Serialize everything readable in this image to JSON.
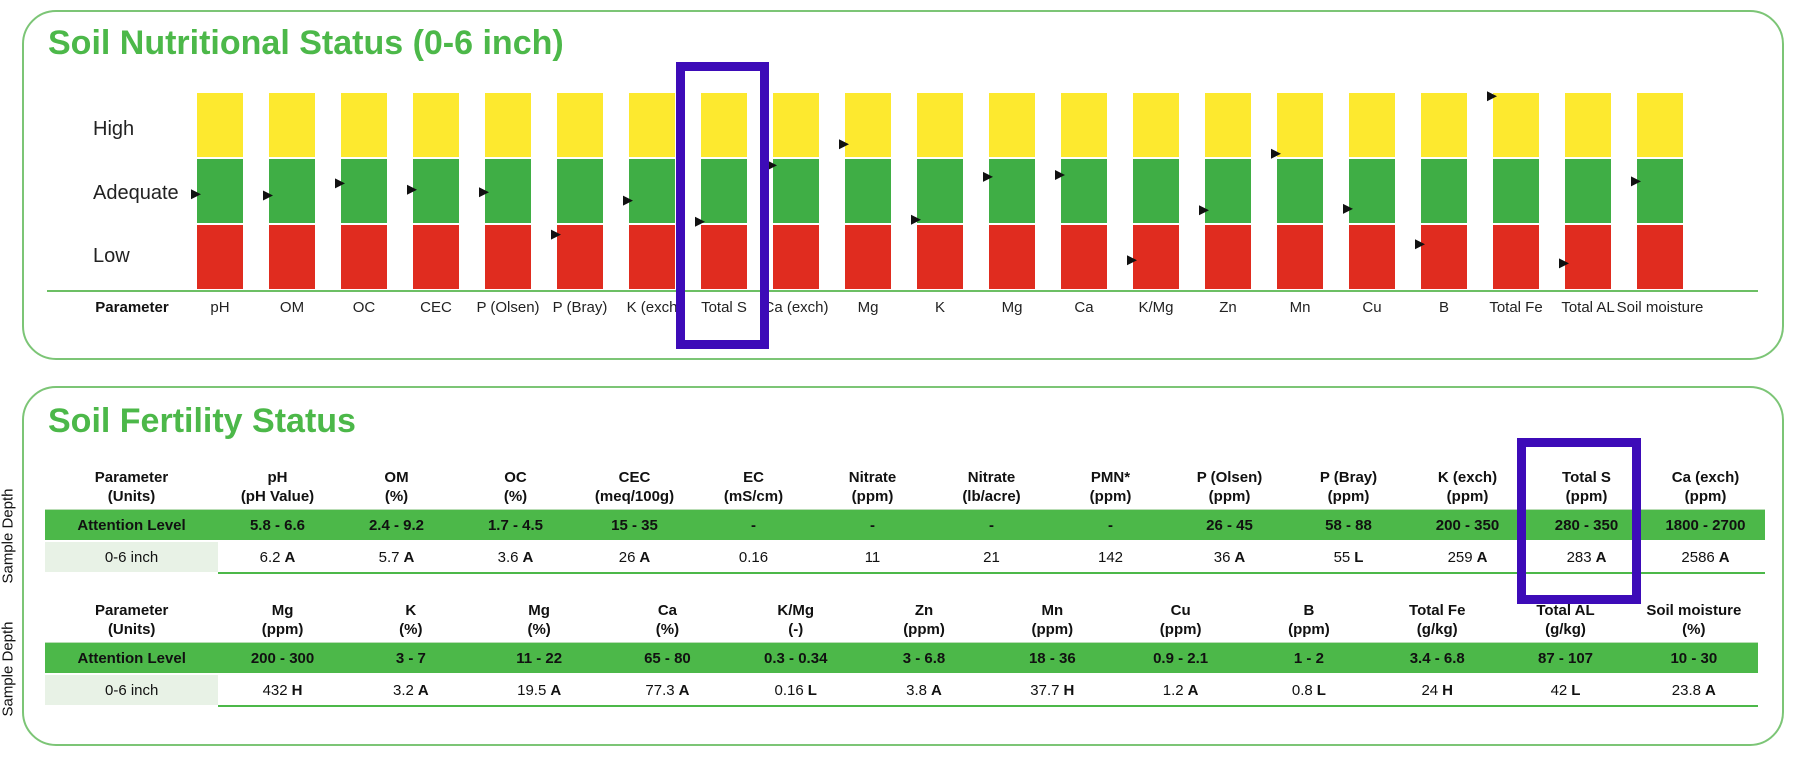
{
  "nutritional": {
    "title": "Soil Nutritional Status (0-6 inch)",
    "row_labels": [
      "High",
      "Adequate",
      "Low"
    ],
    "param_header": "Parameter",
    "colors": {
      "high": "#fde92f",
      "adequate": "#3fae45",
      "low": "#e02c1f",
      "axis": "#6cbf64",
      "highlight": "#3d0bb8"
    },
    "parameters": [
      "pH",
      "OM",
      "OC",
      "CEC",
      "P (Olsen)",
      "P (Bray)",
      "K (exch",
      "Total S",
      "Ca (exch)",
      "Mg",
      "K",
      "Mg",
      "Ca",
      "K/Mg",
      "Zn",
      "Mn",
      "Cu",
      "B",
      "Total Fe",
      "Total AL",
      "Soil moisture"
    ],
    "marker_levels": [
      1.45,
      1.43,
      1.62,
      1.52,
      1.48,
      0.85,
      1.35,
      1.02,
      1.9,
      2.2,
      1.05,
      1.72,
      1.75,
      0.45,
      1.2,
      2.05,
      1.22,
      0.7,
      2.95,
      0.4,
      1.65
    ],
    "highlighted_index": 7
  },
  "fertility": {
    "title": "Soil Fertility Status",
    "sample_depth_label": "Sample Depth",
    "attention_label": "Attention Level",
    "table1": {
      "param_label": "Parameter",
      "units_label": "(Units)",
      "columns": [
        {
          "name": "pH",
          "unit": "(pH Value)",
          "range": "5.8 - 6.6",
          "value": "6.2",
          "level": "A"
        },
        {
          "name": "OM",
          "unit": "(%)",
          "range": "2.4 - 9.2",
          "value": "5.7",
          "level": "A"
        },
        {
          "name": "OC",
          "unit": "(%)",
          "range": "1.7 - 4.5",
          "value": "3.6",
          "level": "A"
        },
        {
          "name": "CEC",
          "unit": "(meq/100g)",
          "range": "15 - 35",
          "value": "26",
          "level": "A"
        },
        {
          "name": "EC",
          "unit": "(mS/cm)",
          "range": "-",
          "value": "0.16",
          "level": ""
        },
        {
          "name": "Nitrate",
          "unit": "(ppm)",
          "range": "-",
          "value": "11",
          "level": ""
        },
        {
          "name": "Nitrate",
          "unit": "(lb/acre)",
          "range": "-",
          "value": "21",
          "level": ""
        },
        {
          "name": "PMN*",
          "unit": "(ppm)",
          "range": "-",
          "value": "142",
          "level": ""
        },
        {
          "name": "P (Olsen)",
          "unit": "(ppm)",
          "range": "26 - 45",
          "value": "36",
          "level": "A"
        },
        {
          "name": "P (Bray)",
          "unit": "(ppm)",
          "range": "58 - 88",
          "value": "55",
          "level": "L"
        },
        {
          "name": "K (exch)",
          "unit": "(ppm)",
          "range": "200 - 350",
          "value": "259",
          "level": "A"
        },
        {
          "name": "Total S",
          "unit": "(ppm)",
          "range": "280 - 350",
          "value": "283",
          "level": "A"
        },
        {
          "name": "Ca (exch)",
          "unit": "(ppm)",
          "range": "1800 - 2700",
          "value": "2586",
          "level": "A"
        }
      ],
      "depth": "0-6 inch"
    },
    "table2": {
      "param_label": "Parameter",
      "units_label": "(Units)",
      "columns": [
        {
          "name": "Mg",
          "unit": "(ppm)",
          "range": "200 - 300",
          "value": "432",
          "level": "H"
        },
        {
          "name": "K",
          "unit": "(%)",
          "range": "3 - 7",
          "value": "3.2",
          "level": "A"
        },
        {
          "name": "Mg",
          "unit": "(%)",
          "range": "11 - 22",
          "value": "19.5",
          "level": "A"
        },
        {
          "name": "Ca",
          "unit": "(%)",
          "range": "65 - 80",
          "value": "77.3",
          "level": "A"
        },
        {
          "name": "K/Mg",
          "unit": "(-)",
          "range": "0.3 - 0.34",
          "value": "0.16",
          "level": "L"
        },
        {
          "name": "Zn",
          "unit": "(ppm)",
          "range": "3 - 6.8",
          "value": "3.8",
          "level": "A"
        },
        {
          "name": "Mn",
          "unit": "(ppm)",
          "range": "18 - 36",
          "value": "37.7",
          "level": "H"
        },
        {
          "name": "Cu",
          "unit": "(ppm)",
          "range": "0.9 - 2.1",
          "value": "1.2",
          "level": "A"
        },
        {
          "name": "B",
          "unit": "(ppm)",
          "range": "1 - 2",
          "value": "0.8",
          "level": "L"
        },
        {
          "name": "Total Fe",
          "unit": "(g/kg)",
          "range": "3.4 - 6.8",
          "value": "24",
          "level": "H"
        },
        {
          "name": "Total AL",
          "unit": "(g/kg)",
          "range": "87 - 107",
          "value": "42",
          "level": "L"
        },
        {
          "name": "Soil moisture",
          "unit": "(%)",
          "range": "10 - 30",
          "value": "23.8",
          "level": "A"
        }
      ],
      "depth": "0-6 inch"
    }
  }
}
